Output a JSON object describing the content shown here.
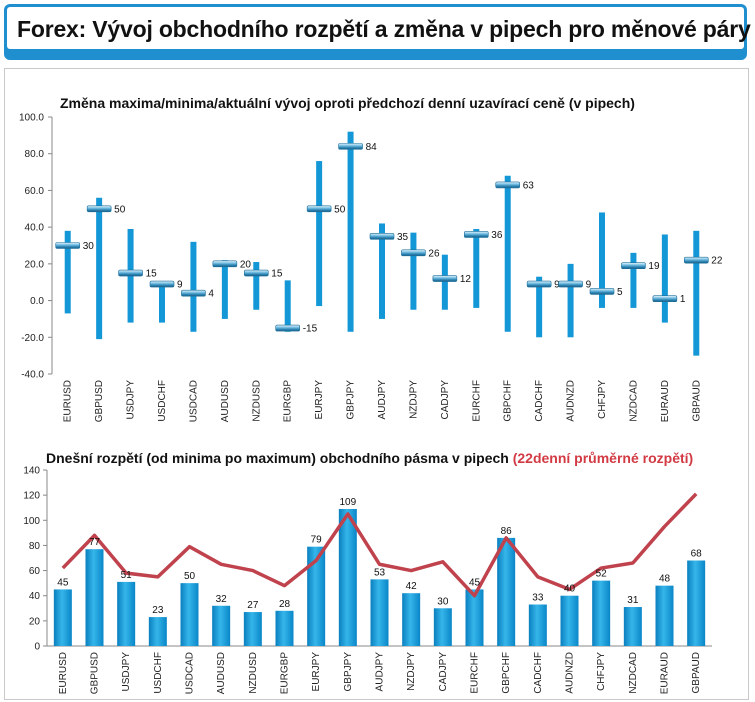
{
  "header": {
    "title": "Forex: Vývoj obchodního rozpětí a změna v pipech pro měnové páry"
  },
  "chart_data": [
    {
      "type": "bar",
      "title": "Změna maxima/minima/aktuální vývoj oproti předchozí denní uzavírací ceně (v pipech)",
      "categories": [
        "EURUSD",
        "GBPUSD",
        "USDJPY",
        "USDCHF",
        "USDCAD",
        "AUDUSD",
        "NZDUSD",
        "EURGBP",
        "EURJPY",
        "GBPJPY",
        "AUDJPY",
        "NZDJPY",
        "CADJPY",
        "EURCHF",
        "GBPCHF",
        "CADCHF",
        "AUDNZD",
        "CHFJPY",
        "NZDCAD",
        "EURAUD",
        "GBPAUD"
      ],
      "series": [
        {
          "values": [
            38,
            56,
            39,
            9,
            32,
            22,
            21,
            11,
            76,
            92,
            42,
            37,
            25,
            39,
            68,
            13,
            20,
            48,
            26,
            36,
            38
          ]
        },
        {
          "values": [
            -7,
            -21,
            -12,
            -12,
            -17,
            -10,
            -5,
            -17,
            -3,
            -17,
            -10,
            -5,
            -5,
            -4,
            -17,
            -20,
            -20,
            -4,
            -4,
            -12,
            -30
          ]
        },
        {
          "values": [
            30,
            50,
            15,
            9,
            4,
            20,
            15,
            -15,
            50,
            84,
            35,
            26,
            12,
            36,
            63,
            9,
            9,
            5,
            19,
            1,
            22
          ]
        }
      ],
      "ylim": [
        -40,
        100
      ],
      "yticks": [
        "-40.0",
        "-20.0",
        "0.0",
        "20.0",
        "40.0",
        "60.0",
        "80.0",
        "100.0"
      ],
      "grid": false
    },
    {
      "type": "bar",
      "title": "Dnešní rozpětí (od minima po maximum) obchodního pásma v pipech",
      "title_highlight": "(22denní průměrné rozpětí)",
      "categories": [
        "EURUSD",
        "GBPUSD",
        "USDJPY",
        "USDCHF",
        "USDCAD",
        "AUDUSD",
        "NZDUSD",
        "EURGBP",
        "EURJPY",
        "GBPJPY",
        "AUDJPY",
        "NZDJPY",
        "CADJPY",
        "EURCHF",
        "GBPCHF",
        "CADCHF",
        "AUDNZD",
        "CHFJPY",
        "NZDCAD",
        "EURAUD",
        "GBPAUD"
      ],
      "series": [
        {
          "values": [
            45,
            77,
            51,
            23,
            50,
            32,
            27,
            28,
            79,
            109,
            53,
            42,
            30,
            45,
            86,
            33,
            40,
            52,
            31,
            48,
            68
          ]
        },
        {
          "values": [
            62,
            88,
            58,
            55,
            79,
            65,
            60,
            48,
            68,
            105,
            65,
            60,
            67,
            40,
            86,
            55,
            45,
            62,
            66,
            95,
            121
          ]
        }
      ],
      "ylim": [
        0,
        140
      ],
      "yticks": [
        "0",
        "20",
        "40",
        "60",
        "80",
        "100",
        "120",
        "140"
      ],
      "grid": false,
      "colors": {
        "bar": "#0f9ad8",
        "line": "#c0424d"
      }
    }
  ]
}
